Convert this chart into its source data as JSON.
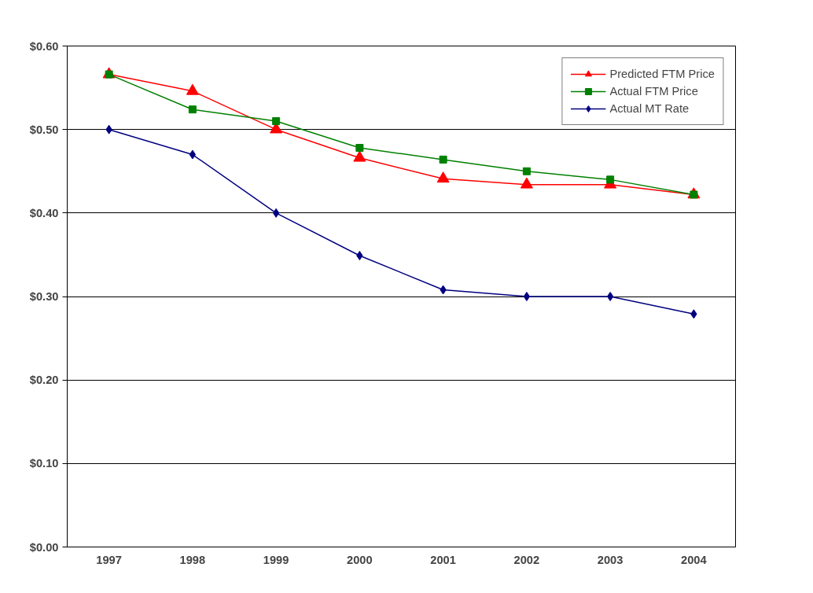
{
  "chart_data": {
    "type": "line",
    "categories": [
      "1997",
      "1998",
      "1999",
      "2000",
      "2001",
      "2002",
      "2003",
      "2004"
    ],
    "series": [
      {
        "name": "Predicted FTM Price",
        "color": "#ff0000",
        "marker": "triangle",
        "values": [
          0.566,
          0.546,
          0.5,
          0.466,
          0.441,
          0.434,
          0.434,
          0.422
        ]
      },
      {
        "name": "Actual FTM Price",
        "color": "#008000",
        "marker": "square",
        "values": [
          0.566,
          0.524,
          0.51,
          0.478,
          0.464,
          0.45,
          0.44,
          0.422
        ]
      },
      {
        "name": "Actual MT Rate",
        "color": "#000080",
        "marker": "diamond",
        "values": [
          0.5,
          0.47,
          0.4,
          0.349,
          0.308,
          0.3,
          0.3,
          0.279
        ]
      }
    ],
    "ylim": [
      0,
      0.6
    ],
    "yticks": [
      {
        "value": 0,
        "label": "$0.00"
      },
      {
        "value": 0.1,
        "label": "$0.10"
      },
      {
        "value": 0.2,
        "label": "$0.20"
      },
      {
        "value": 0.3,
        "label": "$0.30"
      },
      {
        "value": 0.4,
        "label": "$0.40"
      },
      {
        "value": 0.5,
        "label": "$0.50"
      },
      {
        "value": 0.6,
        "label": "$0.60"
      }
    ],
    "grid": "y",
    "legend": "top right",
    "line_style": "solid"
  }
}
